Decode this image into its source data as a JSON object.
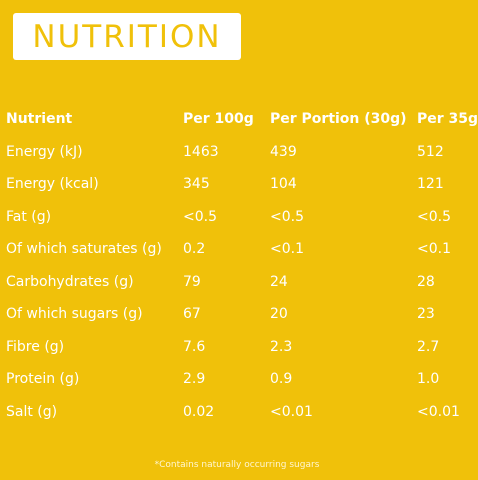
{
  "title": "NUTRITION",
  "table": {
    "headers": [
      "Nutrient",
      "Per 100g",
      "Per Portion (30g)",
      "Per 35g"
    ],
    "rows": [
      [
        "Energy (kJ)",
        "1463",
        "439",
        "512"
      ],
      [
        "Energy (kcal)",
        "345",
        "104",
        "121"
      ],
      [
        "Fat (g)",
        "<0.5",
        "<0.5",
        "<0.5"
      ],
      [
        "Of which saturates (g)",
        "0.2",
        "<0.1",
        "<0.1"
      ],
      [
        "Carbohydrates (g)",
        "79",
        "24",
        "28"
      ],
      [
        "Of which sugars (g)",
        "67",
        "20",
        "23"
      ],
      [
        "Fibre (g)",
        "7.6",
        "2.3",
        "2.7"
      ],
      [
        "Protein (g)",
        "2.9",
        "0.9",
        "1.0"
      ],
      [
        "Salt (g)",
        "0.02",
        "<0.01",
        "<0.01"
      ]
    ]
  },
  "footnote": "*Contains naturally occurring sugars",
  "colors": {
    "background": "#f0c10a",
    "text": "#ffffff"
  }
}
